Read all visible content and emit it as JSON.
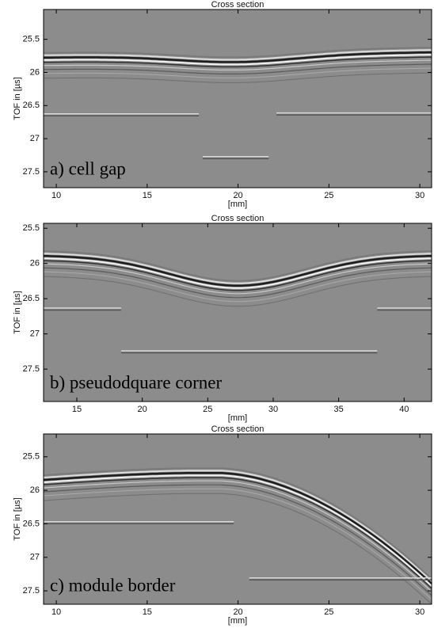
{
  "chart_data": [
    {
      "type": "image",
      "title": "Cross section",
      "xlabel": "[mm]",
      "ylabel": "TOF in [µs]",
      "annotation": "a) cell gap",
      "xlim": [
        9.3,
        30.65
      ],
      "xticks": [
        10,
        15,
        20,
        25,
        30
      ],
      "ylim": [
        25.05,
        27.74
      ],
      "yticks": [
        25.5,
        26,
        26.5,
        27,
        27.5
      ],
      "y_reversed": true
    },
    {
      "type": "image",
      "title": "Cross section",
      "xlabel": "[mm]",
      "ylabel": "TOF in [µs]",
      "annotation": "b) pseudodquare corner",
      "xlim": [
        12.46,
        42.1
      ],
      "xticks": [
        15,
        20,
        25,
        30,
        35,
        40
      ],
      "ylim": [
        25.43,
        27.96
      ],
      "yticks": [
        25.5,
        26,
        26.5,
        27,
        27.5
      ],
      "y_reversed": true
    },
    {
      "type": "image",
      "title": "Cross section",
      "xlabel": "[mm]",
      "ylabel": "TOF in [µs]",
      "annotation": "c) module border",
      "xlim": [
        9.3,
        30.65
      ],
      "xticks": [
        10,
        15,
        20,
        25,
        30
      ],
      "ylim": [
        25.16,
        27.7
      ],
      "yticks": [
        25.5,
        26,
        26.5,
        27,
        27.5
      ],
      "y_reversed": true
    }
  ]
}
